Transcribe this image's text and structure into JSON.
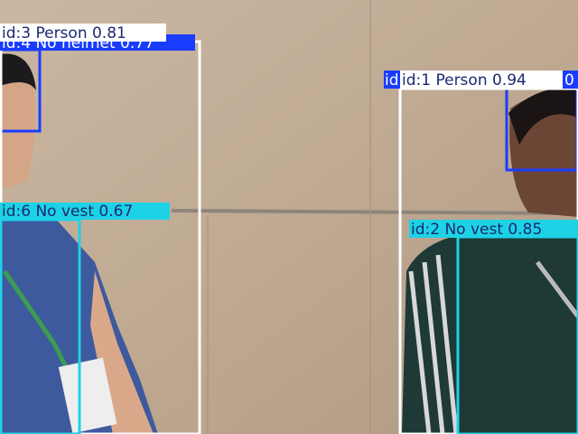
{
  "detections": [
    {
      "label": "id:4 No helmet 0.77"
    },
    {
      "label": "id:3 Person 0.81"
    },
    {
      "label": "id:6 No vest 0.67"
    },
    {
      "label": "id"
    },
    {
      "label": "0"
    },
    {
      "label": "id:1 Person 0.94"
    },
    {
      "label": "id:2 No vest 0.85"
    }
  ]
}
